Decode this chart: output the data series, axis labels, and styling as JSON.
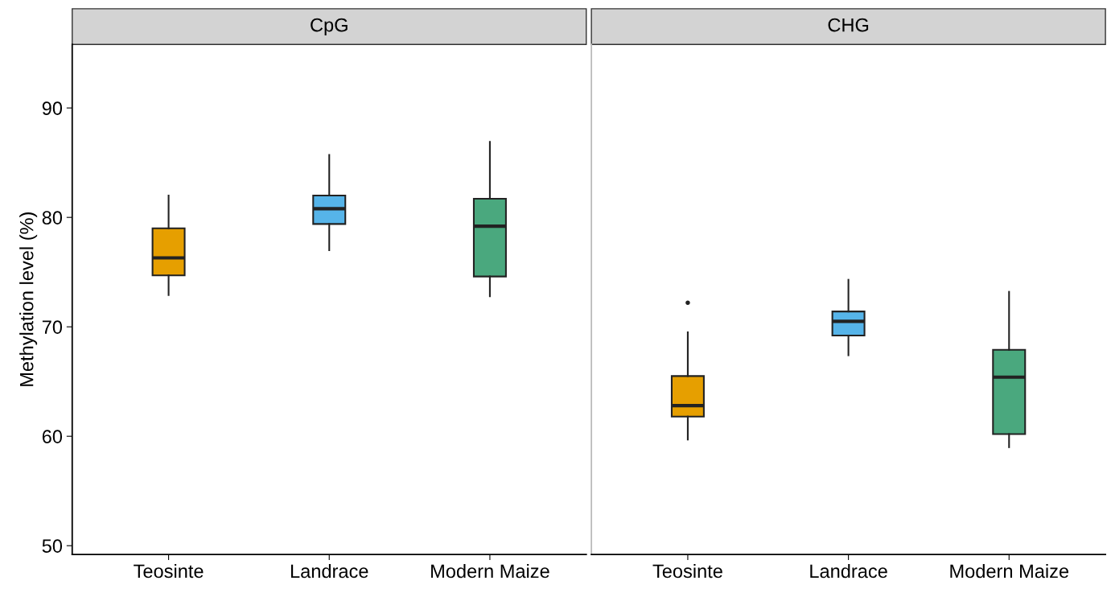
{
  "chart_data": [
    {
      "type": "box",
      "title": "CpG",
      "ylabel": "Methylation level (%)",
      "categories": [
        "Teosinte",
        "Landrace",
        "Modern Maize"
      ],
      "colors": [
        "#e69f00",
        "#56b4e9",
        "#4aa87e"
      ],
      "boxes": [
        {
          "low": 72.9,
          "q1": 74.7,
          "median": 76.3,
          "q3": 79.0,
          "high": 82.0
        },
        {
          "low": 77.0,
          "q1": 79.4,
          "median": 80.8,
          "q3": 82.0,
          "high": 85.7
        },
        {
          "low": 72.8,
          "q1": 74.6,
          "median": 79.2,
          "q3": 81.7,
          "high": 86.9
        }
      ],
      "ylim": [
        49.2,
        95.8
      ],
      "yticks": [
        50,
        60,
        70,
        80,
        90
      ]
    },
    {
      "type": "box",
      "title": "CHG",
      "categories": [
        "Teosinte",
        "Landrace",
        "Modern Maize"
      ],
      "colors": [
        "#e69f00",
        "#56b4e9",
        "#4aa87e"
      ],
      "boxes": [
        {
          "low": 59.7,
          "q1": 61.8,
          "median": 62.8,
          "q3": 65.5,
          "high": 69.5,
          "outliers": [
            72.2
          ]
        },
        {
          "low": 67.4,
          "q1": 69.2,
          "median": 70.5,
          "q3": 71.4,
          "high": 74.3
        },
        {
          "low": 59.0,
          "q1": 60.2,
          "median": 65.4,
          "q3": 67.9,
          "high": 73.2
        }
      ],
      "ylim": [
        49.2,
        95.8
      ],
      "yticks": [
        50,
        60,
        70,
        80,
        90
      ],
      "tick_labels": "x"
    }
  ]
}
